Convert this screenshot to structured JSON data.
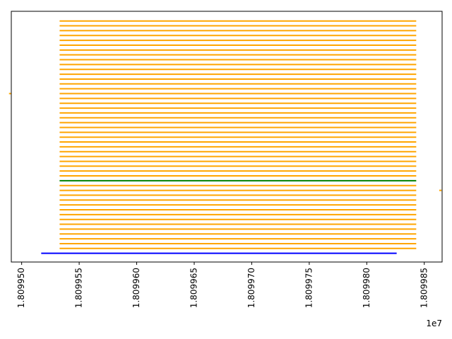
{
  "chart_data": {
    "type": "line",
    "title": "",
    "xlabel": "",
    "ylabel": "",
    "x_offset_label": "1e7",
    "xlim": [
      18099491.0,
      18099865.5
    ],
    "ylim": [
      0.2,
      52.0
    ],
    "xticks": [
      18099500.0,
      18099550.0,
      18099600.0,
      18099650.0,
      18099700.0,
      18099750.0,
      18099800.0,
      18099850.0
    ],
    "xtick_labels": [
      "1.809950",
      "1.809955",
      "1.809960",
      "1.809965",
      "1.809970",
      "1.809975",
      "1.809980",
      "1.809985"
    ],
    "y_axis_visible": false,
    "grid": false,
    "legend": "none",
    "colors": {
      "orange": "#ffa500",
      "green": "#008000",
      "blue": "#0000ff",
      "axis": "#000000"
    },
    "series": [
      {
        "color": "orange",
        "kind": "stacked-horizontal-lines",
        "x_start": 18099533.0,
        "x_end": 18099843.0,
        "y_start": 3.0,
        "y_end": 50.0,
        "count": 48,
        "skip_y": [
          17.0
        ]
      },
      {
        "color": "green",
        "kind": "horizontal-line",
        "x_start": 18099533.0,
        "x_end": 18099843.0,
        "y": 17.0
      },
      {
        "color": "blue",
        "kind": "horizontal-line",
        "x_start": 18099517.0,
        "x_end": 18099826.0,
        "y": 2.0
      },
      {
        "color": "orange",
        "kind": "short-tick",
        "x_start": 18099489.0,
        "x_end": 18099491.0,
        "y": 35.0
      },
      {
        "color": "orange",
        "kind": "short-tick",
        "x_start": 18099863.0,
        "x_end": 18099865.0,
        "y": 15.0
      }
    ]
  }
}
